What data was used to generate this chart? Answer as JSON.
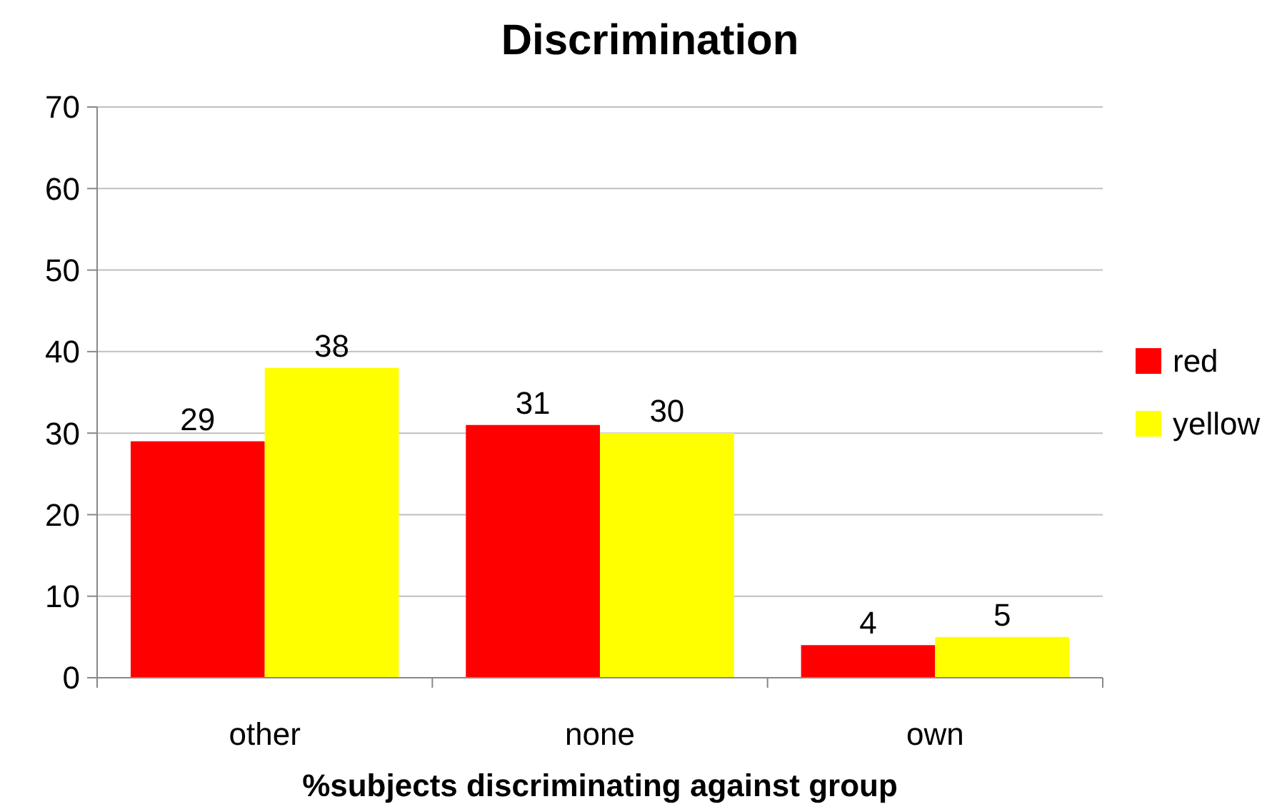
{
  "chart_data": {
    "type": "bar",
    "title": "Discrimination",
    "xlabel": "%subjects discriminating against group",
    "categories": [
      "other",
      "none",
      "own"
    ],
    "series": [
      {
        "name": "red",
        "color": "#ff0000",
        "values": [
          29,
          31,
          4
        ]
      },
      {
        "name": "yellow",
        "color": "#ffff00",
        "values": [
          38,
          30,
          5
        ]
      }
    ],
    "ylim": [
      0,
      70
    ],
    "yticks": [
      0,
      10,
      20,
      30,
      40,
      50,
      60,
      70
    ],
    "grid": "y",
    "legend": "right",
    "data_labels": true
  }
}
